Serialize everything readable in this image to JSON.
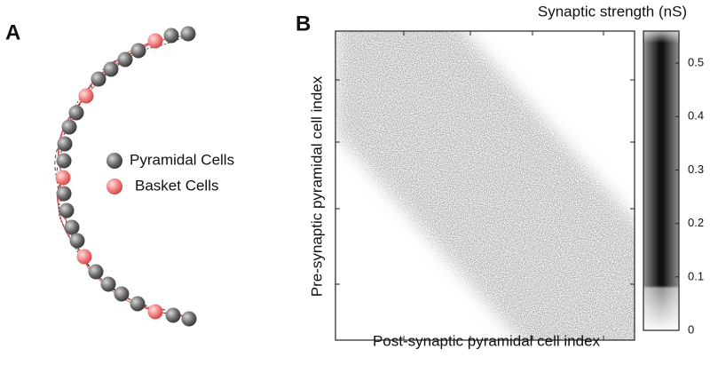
{
  "panels": [
    {
      "label": "A",
      "legend": [
        {
          "name": "Pyramidal Cells"
        },
        {
          "name": "Basket Cells"
        }
      ]
    },
    {
      "label": "B",
      "x_label": "Post-synaptic pyramidal cell index",
      "y_label": "Pre-synaptic pyramidal cell index",
      "colorbar": {
        "title": "Synaptic strength (nS)",
        "lim": [
          0,
          0.56
        ],
        "ticks": [
          0,
          0.1,
          0.2,
          0.3,
          0.4,
          0.5
        ]
      }
    }
  ]
}
